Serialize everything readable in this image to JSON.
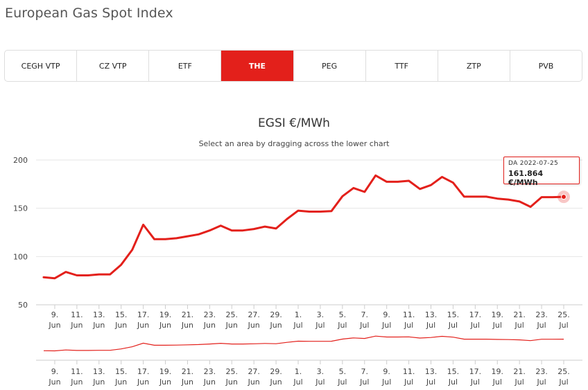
{
  "page": {
    "title": "European Gas Spot Index"
  },
  "tabs": [
    {
      "label": "CEGH VTP",
      "active": false
    },
    {
      "label": "CZ VTP",
      "active": false
    },
    {
      "label": "ETF",
      "active": false
    },
    {
      "label": "THE",
      "active": true
    },
    {
      "label": "PEG",
      "active": false
    },
    {
      "label": "TTF",
      "active": false
    },
    {
      "label": "ZTP",
      "active": false
    },
    {
      "label": "PVB",
      "active": false
    }
  ],
  "chart": {
    "title": "EGSI €/MWh",
    "subtitle": "Select an area by dragging across the lower chart",
    "accent_color": "#e3201b",
    "tooltip": {
      "date": "DA 2022-07-25",
      "value": "161.864 €/MWh"
    }
  },
  "chart_data": {
    "type": "line",
    "title": "EGSI €/MWh",
    "ylim": [
      50,
      200
    ],
    "yticks": [
      50,
      100,
      150,
      200
    ],
    "grid": true,
    "xtick_labels": [
      [
        "9.",
        "Jun"
      ],
      [
        "11.",
        "Jun"
      ],
      [
        "13.",
        "Jun"
      ],
      [
        "15.",
        "Jun"
      ],
      [
        "17.",
        "Jun"
      ],
      [
        "19.",
        "Jun"
      ],
      [
        "21.",
        "Jun"
      ],
      [
        "23.",
        "Jun"
      ],
      [
        "25.",
        "Jun"
      ],
      [
        "27.",
        "Jun"
      ],
      [
        "29.",
        "Jun"
      ],
      [
        "1.",
        "Jul"
      ],
      [
        "3.",
        "Jul"
      ],
      [
        "5.",
        "Jul"
      ],
      [
        "7.",
        "Jul"
      ],
      [
        "9.",
        "Jul"
      ],
      [
        "11.",
        "Jul"
      ],
      [
        "13.",
        "Jul"
      ],
      [
        "15.",
        "Jul"
      ],
      [
        "17.",
        "Jul"
      ],
      [
        "19.",
        "Jul"
      ],
      [
        "21.",
        "Jul"
      ],
      [
        "23.",
        "Jul"
      ],
      [
        "25.",
        "Jul"
      ]
    ],
    "x_start": "2022-06-08",
    "x_end": "2022-07-25",
    "x": [
      "2022-06-08",
      "2022-06-09",
      "2022-06-10",
      "2022-06-11",
      "2022-06-12",
      "2022-06-13",
      "2022-06-14",
      "2022-06-15",
      "2022-06-16",
      "2022-06-17",
      "2022-06-18",
      "2022-06-19",
      "2022-06-20",
      "2022-06-21",
      "2022-06-22",
      "2022-06-23",
      "2022-06-24",
      "2022-06-25",
      "2022-06-26",
      "2022-06-27",
      "2022-06-28",
      "2022-06-29",
      "2022-06-30",
      "2022-07-01",
      "2022-07-02",
      "2022-07-03",
      "2022-07-04",
      "2022-07-05",
      "2022-07-06",
      "2022-07-07",
      "2022-07-08",
      "2022-07-09",
      "2022-07-10",
      "2022-07-11",
      "2022-07-12",
      "2022-07-13",
      "2022-07-14",
      "2022-07-15",
      "2022-07-16",
      "2022-07-17",
      "2022-07-18",
      "2022-07-19",
      "2022-07-20",
      "2022-07-21",
      "2022-07-22",
      "2022-07-23",
      "2022-07-24",
      "2022-07-25"
    ],
    "series": [
      {
        "values": [
          78.5,
          77.5,
          84,
          80.5,
          80.5,
          81.5,
          81.5,
          91.5,
          107,
          133,
          118,
          118,
          119,
          121,
          123,
          127,
          132,
          127,
          127,
          128.5,
          131,
          129,
          139,
          147.5,
          146.5,
          146.5,
          147,
          162.5,
          171,
          167,
          184,
          177.5,
          177.5,
          178.5,
          170,
          174,
          182.5,
          176.5,
          162,
          162,
          162,
          160,
          159,
          157,
          151.5,
          161.5,
          161.5,
          161.864
        ]
      }
    ]
  }
}
